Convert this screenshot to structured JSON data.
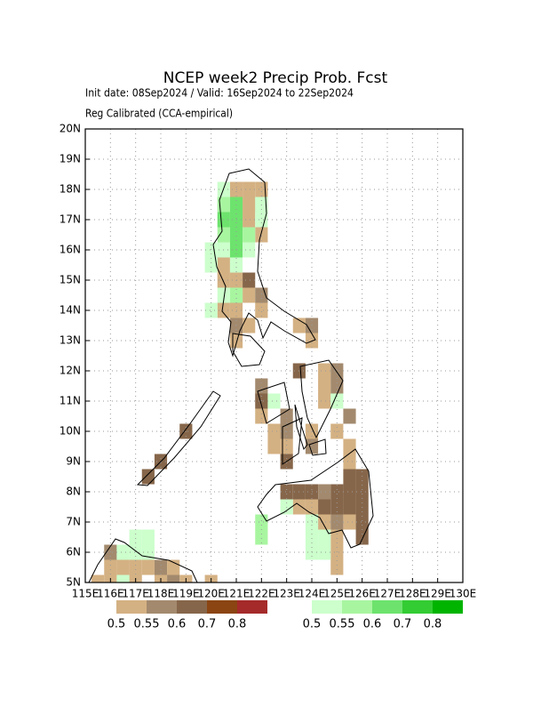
{
  "chart_data": {
    "type": "grid-map",
    "title": "NCEP week2 Precip Prob. Fcst",
    "subtitle": "Init date: 08Sep2024 / Valid: 16Sep2024 to 22Sep2024",
    "note": "Reg Calibrated (CCA-empirical)",
    "xlim": [
      115,
      130
    ],
    "ylim": [
      5,
      20
    ],
    "xticks": [
      {
        "value": 115,
        "label": "115E"
      },
      {
        "value": 116,
        "label": "116E"
      },
      {
        "value": 117,
        "label": "117E"
      },
      {
        "value": 118,
        "label": "118E"
      },
      {
        "value": 119,
        "label": "119E"
      },
      {
        "value": 120,
        "label": "120E"
      },
      {
        "value": 121,
        "label": "121E"
      },
      {
        "value": 122,
        "label": "122E"
      },
      {
        "value": 123,
        "label": "123E"
      },
      {
        "value": 124,
        "label": "124E"
      },
      {
        "value": 125,
        "label": "125E"
      },
      {
        "value": 126,
        "label": "126E"
      },
      {
        "value": 127,
        "label": "127E"
      },
      {
        "value": 128,
        "label": "128E"
      },
      {
        "value": 129,
        "label": "129E"
      },
      {
        "value": 130,
        "label": "130E"
      }
    ],
    "yticks": [
      {
        "value": 5,
        "label": "5N"
      },
      {
        "value": 6,
        "label": "6N"
      },
      {
        "value": 7,
        "label": "7N"
      },
      {
        "value": 8,
        "label": "8N"
      },
      {
        "value": 9,
        "label": "9N"
      },
      {
        "value": 10,
        "label": "10N"
      },
      {
        "value": 11,
        "label": "11N"
      },
      {
        "value": 12,
        "label": "12N"
      },
      {
        "value": 13,
        "label": "13N"
      },
      {
        "value": 14,
        "label": "14N"
      },
      {
        "value": 15,
        "label": "15N"
      },
      {
        "value": 16,
        "label": "16N"
      },
      {
        "value": 17,
        "label": "17N"
      },
      {
        "value": 18,
        "label": "18N"
      },
      {
        "value": 19,
        "label": "19N"
      },
      {
        "value": 20,
        "label": "20N"
      }
    ],
    "grid": true,
    "cell_size": 0.5,
    "levels": [
      0.5,
      0.55,
      0.6,
      0.7,
      0.8
    ],
    "dry_colors": [
      "#d4b183",
      "#a38a6e",
      "#86664a",
      "#8b4513",
      "#a52a2a"
    ],
    "wet_colors": [
      "#ccffcc",
      "#a8f5a0",
      "#6de36d",
      "#33cc33",
      "#00b400"
    ],
    "dry_cells": [
      [
        121,
        18,
        0.5
      ],
      [
        121.5,
        18,
        0.5
      ],
      [
        122,
        18,
        0.5
      ],
      [
        121.5,
        17.5,
        0.5
      ],
      [
        122,
        17.5,
        0.5
      ],
      [
        121.5,
        17,
        0.5
      ],
      [
        122,
        16.5,
        0.5
      ],
      [
        120.5,
        15.5,
        0.5
      ],
      [
        120.5,
        15,
        0.5
      ],
      [
        121,
        15,
        0.5
      ],
      [
        121.5,
        15,
        0.6
      ],
      [
        121.5,
        14.5,
        0.5
      ],
      [
        122,
        14.5,
        0.55
      ],
      [
        120.5,
        14,
        0.5
      ],
      [
        121,
        14,
        0.5
      ],
      [
        122,
        14,
        0.5
      ],
      [
        121,
        13.5,
        0.55
      ],
      [
        121.5,
        13.5,
        0.5
      ],
      [
        123.5,
        13.5,
        0.5
      ],
      [
        124,
        13.5,
        0.55
      ],
      [
        121,
        13,
        0.5
      ],
      [
        124,
        13,
        0.5
      ],
      [
        123.5,
        12,
        0.6
      ],
      [
        124.5,
        12,
        0.5
      ],
      [
        125,
        12,
        0.55
      ],
      [
        122,
        11.5,
        0.55
      ],
      [
        124.5,
        11.5,
        0.5
      ],
      [
        125,
        11.5,
        0.55
      ],
      [
        122,
        11,
        0.6
      ],
      [
        124.5,
        11,
        0.5
      ],
      [
        122,
        10.5,
        0.5
      ],
      [
        123,
        10.5,
        0.55
      ],
      [
        125.5,
        10.5,
        0.55
      ],
      [
        122.5,
        10,
        0.5
      ],
      [
        123,
        10,
        0.55
      ],
      [
        124,
        10,
        0.5
      ],
      [
        125,
        10,
        0.5
      ],
      [
        119,
        10,
        0.6
      ],
      [
        122.5,
        9.5,
        0.5
      ],
      [
        123,
        9.5,
        0.5
      ],
      [
        124,
        9.5,
        0.55
      ],
      [
        125.5,
        9.5,
        0.5
      ],
      [
        118,
        9,
        0.6
      ],
      [
        123,
        9,
        0.6
      ],
      [
        125.5,
        9,
        0.5
      ],
      [
        117.5,
        8.5,
        0.6
      ],
      [
        125.5,
        8.5,
        0.6
      ],
      [
        126,
        8.5,
        0.6
      ],
      [
        123,
        8,
        0.6
      ],
      [
        123.5,
        8,
        0.6
      ],
      [
        124,
        8,
        0.6
      ],
      [
        124.5,
        8,
        0.55
      ],
      [
        125,
        8,
        0.6
      ],
      [
        125.5,
        8,
        0.6
      ],
      [
        126,
        8,
        0.6
      ],
      [
        123.5,
        7.5,
        0.5
      ],
      [
        124,
        7.5,
        0.5
      ],
      [
        124.5,
        7.5,
        0.6
      ],
      [
        125,
        7.5,
        0.6
      ],
      [
        125.5,
        7.5,
        0.6
      ],
      [
        126,
        7.5,
        0.6
      ],
      [
        124.5,
        7,
        0.5
      ],
      [
        125,
        7,
        0.55
      ],
      [
        125.5,
        7,
        0.5
      ],
      [
        126,
        7,
        0.6
      ],
      [
        125,
        6.5,
        0.5
      ],
      [
        126,
        6.5,
        0.6
      ],
      [
        125,
        6,
        0.5
      ],
      [
        125,
        5.5,
        0.5
      ],
      [
        116,
        6,
        0.55
      ],
      [
        116,
        5.5,
        0.5
      ],
      [
        116.5,
        5.5,
        0.5
      ],
      [
        117,
        5.5,
        0.5
      ],
      [
        117.5,
        5.5,
        0.5
      ],
      [
        118,
        5.5,
        0.55
      ],
      [
        118.5,
        5.5,
        0.5
      ],
      [
        115.5,
        5,
        0.5
      ],
      [
        116,
        5,
        0.5
      ],
      [
        117,
        5,
        0.5
      ],
      [
        118,
        5,
        0.5
      ],
      [
        118.5,
        5,
        0.55
      ],
      [
        119,
        5,
        0.5
      ],
      [
        120,
        5,
        0.5
      ]
    ],
    "wet_cells": [
      [
        120.5,
        18,
        0.5
      ],
      [
        120.5,
        17.5,
        0.55
      ],
      [
        121,
        17.5,
        0.6
      ],
      [
        122,
        17.5,
        0.5
      ],
      [
        120.5,
        17,
        0.6
      ],
      [
        121,
        17,
        0.6
      ],
      [
        122,
        17,
        0.5
      ],
      [
        120.5,
        16.5,
        0.55
      ],
      [
        121,
        16.5,
        0.6
      ],
      [
        121.5,
        16.5,
        0.55
      ],
      [
        120,
        16,
        0.5
      ],
      [
        120.5,
        16,
        0.5
      ],
      [
        121,
        16,
        0.6
      ],
      [
        121.5,
        16,
        0.5
      ],
      [
        120,
        15.5,
        0.5
      ],
      [
        121,
        15.5,
        0.5
      ],
      [
        120.5,
        14.5,
        0.5
      ],
      [
        121,
        14.5,
        0.55
      ],
      [
        120,
        14,
        0.5
      ],
      [
        122.5,
        11,
        0.5
      ],
      [
        125,
        11,
        0.5
      ],
      [
        123,
        7.5,
        0.5
      ],
      [
        122,
        7,
        0.55
      ],
      [
        124,
        7,
        0.5
      ],
      [
        122,
        6.5,
        0.55
      ],
      [
        124,
        6.5,
        0.5
      ],
      [
        124.5,
        6.5,
        0.5
      ],
      [
        124,
        6,
        0.5
      ],
      [
        124.5,
        6,
        0.5
      ],
      [
        117,
        6.5,
        0.5
      ],
      [
        117.5,
        6.5,
        0.5
      ],
      [
        116.5,
        6,
        0.5
      ],
      [
        117,
        6,
        0.5
      ],
      [
        117.5,
        6,
        0.5
      ],
      [
        116.5,
        5,
        0.5
      ]
    ]
  }
}
